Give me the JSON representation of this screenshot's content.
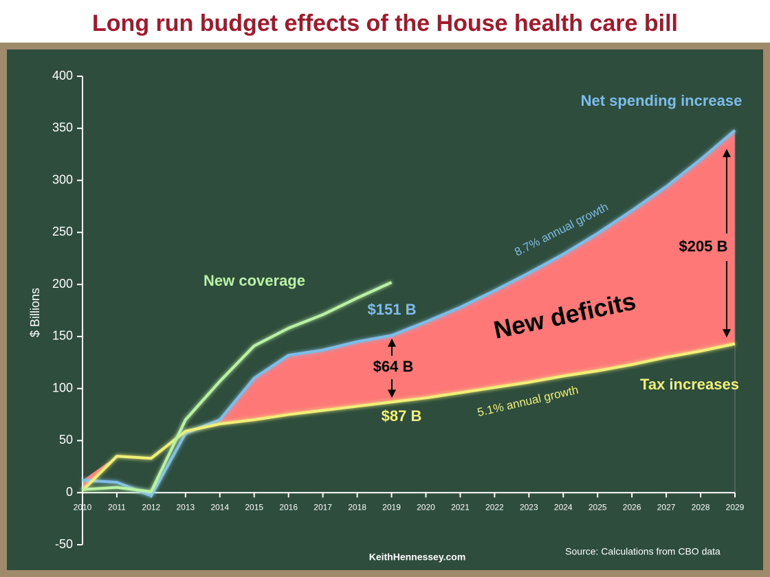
{
  "chart_data": {
    "type": "line",
    "title": "Long run budget effects of the House health care bill",
    "y_label": "$ Billions",
    "categories": [
      "2010",
      "2011",
      "2012",
      "2013",
      "2014",
      "2015",
      "2016",
      "2017",
      "2018",
      "2019",
      "2020",
      "2021",
      "2022",
      "2023",
      "2024",
      "2025",
      "2026",
      "2027",
      "2028",
      "2029"
    ],
    "series": [
      {
        "name": "Net spending increase",
        "color": "#7fbde9",
        "values": [
          12,
          10,
          -3,
          57,
          70,
          110,
          132,
          137,
          145,
          151,
          164,
          178,
          194,
          211,
          229,
          249,
          271,
          294,
          320,
          348
        ]
      },
      {
        "name": "Tax increases",
        "color": "#f0ef78",
        "values": [
          2,
          35,
          33,
          59,
          66,
          70,
          75,
          79,
          83,
          87,
          91,
          96,
          101,
          106,
          112,
          117,
          123,
          130,
          136,
          143
        ]
      },
      {
        "name": "New coverage",
        "color": "#b9f2a3",
        "values": [
          3,
          5,
          1,
          70,
          107,
          141,
          158,
          171,
          187,
          202,
          null,
          null,
          null,
          null,
          null,
          null,
          null,
          null,
          null,
          null
        ]
      }
    ],
    "ylim": [
      -50,
      400
    ],
    "yticks": [
      -50,
      0,
      50,
      100,
      150,
      200,
      250,
      300,
      350,
      400
    ],
    "annotations": {
      "deficits": "New deficits",
      "net_growth": "8.7% annual growth",
      "tax_growth": "5.1% annual growth",
      "net_2019": "$151 B",
      "tax_2019": "$87 B",
      "gap_2019": "$64 B",
      "gap_2029": "$205 B"
    },
    "credit": "KeithHennessey.com",
    "source": "Source:  Calculations from CBO data"
  }
}
